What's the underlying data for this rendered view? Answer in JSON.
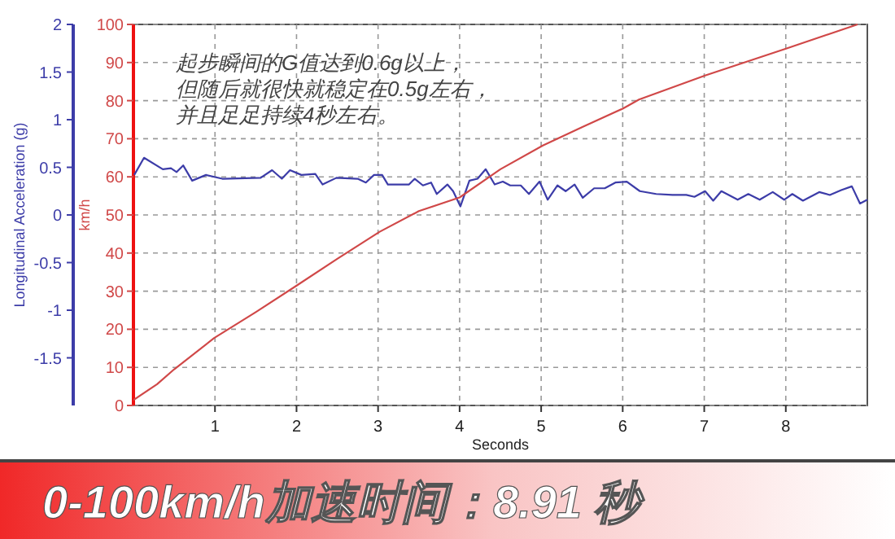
{
  "chart_data": {
    "type": "line",
    "title": "0-100km/h加速时间：8.91 秒",
    "xlabel": "Seconds",
    "ylabel": "Longitudinal Acceleration (g)",
    "y2label": "km/h",
    "annotations": [
      "起步瞬间的G值达到0.6g以上，但随后就很快就稳定在0.5g左右，并且足足持续4秒左右。"
    ],
    "xlim": [
      0,
      9
    ],
    "xticks": [
      1,
      2,
      3,
      4,
      5,
      6,
      7,
      8
    ],
    "ylim": [
      -2,
      2
    ],
    "yticks": [
      -1.5,
      -1,
      -0.5,
      0,
      0.5,
      1,
      1.5,
      2
    ],
    "y2lim": [
      0,
      100
    ],
    "y2ticks": [
      0,
      10,
      20,
      30,
      40,
      50,
      60,
      70,
      80,
      90,
      100
    ],
    "grid": true,
    "series": [
      {
        "color": "#3c3ca8",
        "axis": "y",
        "x": [
          0.01,
          0.13,
          0.36,
          0.46,
          0.53,
          0.61,
          0.72,
          0.89,
          1.09,
          1.56,
          1.7,
          1.82,
          1.92,
          2.06,
          2.23,
          2.32,
          2.49,
          2.75,
          2.85,
          2.95,
          3.05,
          3.12,
          3.38,
          3.45,
          3.55,
          3.65,
          3.72,
          3.85,
          3.92,
          4.01,
          4.12,
          4.22,
          4.32,
          4.43,
          4.53,
          4.62,
          4.75,
          4.85,
          4.98,
          5.08,
          5.2,
          5.3,
          5.41,
          5.51,
          5.65,
          5.78,
          5.91,
          6.05,
          6.21,
          6.41,
          6.61,
          6.78,
          6.88,
          7.01,
          7.11,
          7.21,
          7.41,
          7.54,
          7.68,
          7.84,
          7.98,
          8.08,
          8.21,
          8.41,
          8.54,
          8.68,
          8.81,
          8.91,
          9.0
        ],
        "values": [
          0.42,
          0.6,
          0.48,
          0.49,
          0.45,
          0.52,
          0.36,
          0.42,
          0.38,
          0.39,
          0.47,
          0.38,
          0.47,
          0.42,
          0.43,
          0.32,
          0.39,
          0.38,
          0.34,
          0.42,
          0.42,
          0.32,
          0.32,
          0.38,
          0.31,
          0.34,
          0.22,
          0.32,
          0.25,
          0.09,
          0.36,
          0.38,
          0.48,
          0.32,
          0.35,
          0.31,
          0.31,
          0.22,
          0.35,
          0.16,
          0.31,
          0.25,
          0.32,
          0.18,
          0.28,
          0.28,
          0.34,
          0.35,
          0.25,
          0.22,
          0.21,
          0.21,
          0.19,
          0.25,
          0.15,
          0.25,
          0.16,
          0.22,
          0.16,
          0.24,
          0.16,
          0.22,
          0.15,
          0.24,
          0.21,
          0.26,
          0.3,
          0.12,
          0.16
        ]
      },
      {
        "color": "#d04848",
        "axis": "y2",
        "x": [
          0,
          0.29,
          0.5,
          0.99,
          1.5,
          1.99,
          2.5,
          3.02,
          3.5,
          4.0,
          4.5,
          5.02,
          5.5,
          6.0,
          6.2,
          7.01,
          8.01,
          8.88
        ],
        "values": [
          1.4,
          5.6,
          9.5,
          17.7,
          24.5,
          31.3,
          38.5,
          45.6,
          51,
          54.6,
          62,
          68.2,
          73,
          77.9,
          80.3,
          86.6,
          93.7,
          100
        ]
      }
    ]
  }
}
